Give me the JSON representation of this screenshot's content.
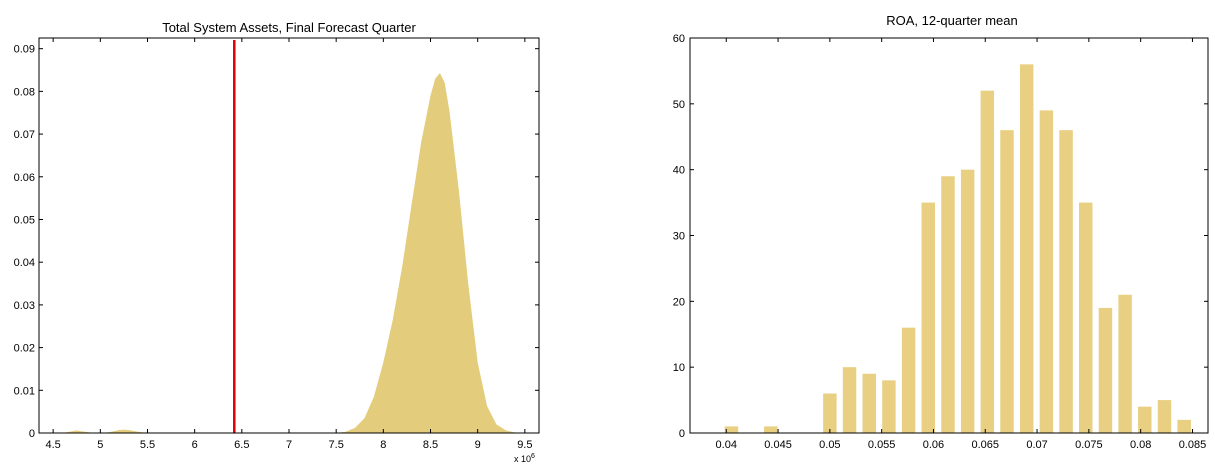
{
  "chart_data": [
    {
      "type": "area",
      "title": "Total System Assets, Final Forecast Quarter",
      "xlabel": "",
      "ylabel": "",
      "x_multiplier_label": "x 10",
      "x_multiplier_exponent": "6",
      "xlim": [
        4.35,
        9.65
      ],
      "ylim": [
        0,
        0.0925
      ],
      "xticks": [
        "4.5",
        "5",
        "5.5",
        "6",
        "6.5",
        "7",
        "7.5",
        "8",
        "8.5",
        "9",
        "9.5"
      ],
      "yticks": [
        "0",
        "0.01",
        "0.02",
        "0.03",
        "0.04",
        "0.05",
        "0.06",
        "0.07",
        "0.08",
        "0.09"
      ],
      "fill_color": "#e3cd7c",
      "reference_line": {
        "x": 6.42,
        "color": "#e00000"
      },
      "series": [
        {
          "x": [
            4.6,
            4.7,
            4.75,
            4.8,
            4.9,
            5.0,
            5.1,
            5.2,
            5.25,
            5.3,
            5.4,
            5.5,
            7.5,
            7.6,
            7.7,
            7.8,
            7.9,
            8.0,
            8.1,
            8.2,
            8.3,
            8.4,
            8.5,
            8.55,
            8.6,
            8.65,
            8.7,
            8.8,
            8.9,
            9.0,
            9.1,
            9.2,
            9.3,
            9.4,
            9.45
          ],
          "y": [
            0,
            0.0004,
            0.0006,
            0.0004,
            0.0001,
            0,
            0.0002,
            0.0007,
            0.0008,
            0.0007,
            0.0003,
            0,
            0,
            0.0003,
            0.0012,
            0.0035,
            0.0085,
            0.0165,
            0.0265,
            0.039,
            0.0535,
            0.068,
            0.079,
            0.083,
            0.0843,
            0.082,
            0.0755,
            0.057,
            0.035,
            0.0165,
            0.0063,
            0.002,
            0.0006,
            0.0001,
            0
          ]
        }
      ]
    },
    {
      "type": "bar",
      "title": "ROA, 12-quarter mean",
      "xlabel": "",
      "ylabel": "",
      "xlim": [
        0.0365,
        0.0865
      ],
      "ylim": [
        0,
        60
      ],
      "xticks": [
        "0.04",
        "0.045",
        "0.05",
        "0.055",
        "0.06",
        "0.065",
        "0.07",
        "0.075",
        "0.08",
        "0.085"
      ],
      "yticks": [
        "0",
        "10",
        "20",
        "30",
        "40",
        "50",
        "60"
      ],
      "bar_color": "#e8cf82",
      "bar_width": 0.0013,
      "x": [
        0.0405,
        0.0443,
        0.0481,
        0.05,
        0.0519,
        0.0538,
        0.0557,
        0.0576,
        0.0595,
        0.0614,
        0.0633,
        0.0652,
        0.0671,
        0.069,
        0.0709,
        0.0728,
        0.0747,
        0.0766,
        0.0785,
        0.0804,
        0.0823
      ],
      "values": [
        1,
        1,
        0,
        6,
        10,
        9,
        8,
        16,
        35,
        39,
        40,
        52,
        46,
        56,
        49,
        46,
        35,
        19,
        21,
        4,
        5
      ],
      "extra_bars": [
        {
          "x": 0.0823,
          "value": 2
        }
      ]
    }
  ]
}
